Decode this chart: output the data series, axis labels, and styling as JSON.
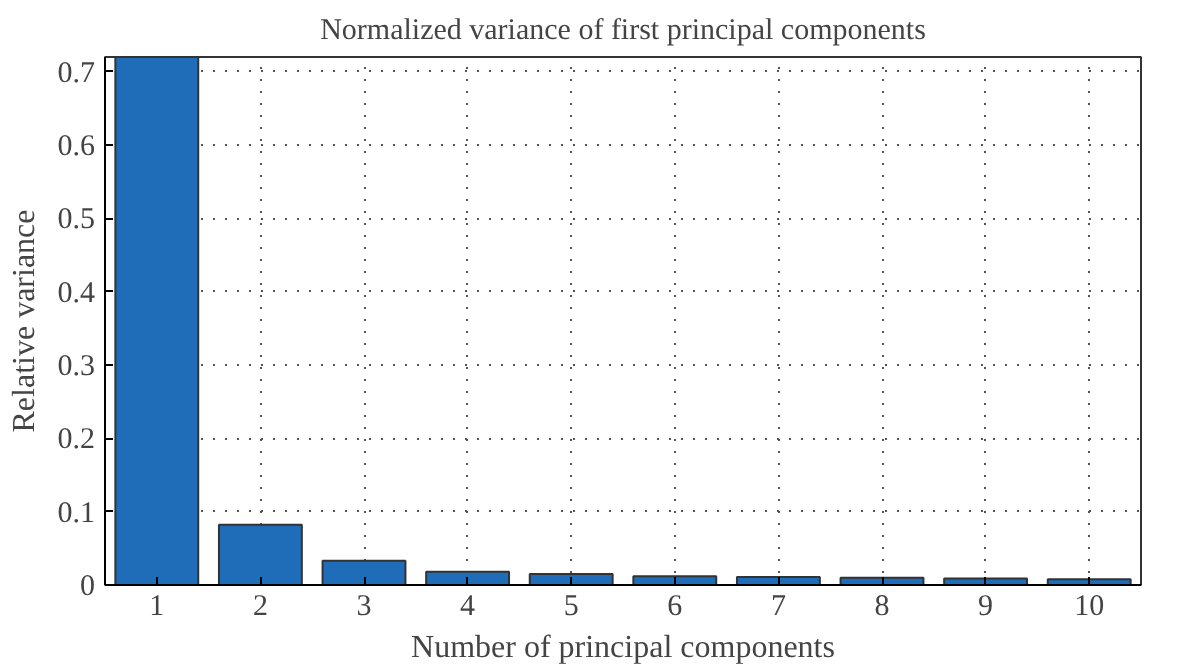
{
  "chart_data": {
    "type": "bar",
    "title": "Normalized variance of first principal components",
    "xlabel": "Number of principal components",
    "ylabel": "Relative variance",
    "x": [
      1,
      2,
      3,
      4,
      5,
      6,
      7,
      8,
      9,
      10
    ],
    "values": [
      0.72,
      0.082,
      0.033,
      0.018,
      0.015,
      0.012,
      0.011,
      0.01,
      0.009,
      0.008
    ],
    "color": "#1f6db8",
    "xlim": [
      0.5,
      10.5
    ],
    "xticks": [
      1,
      2,
      3,
      4,
      5,
      6,
      7,
      8,
      9,
      10
    ],
    "ylim": [
      0,
      0.72
    ],
    "yticks": [
      0,
      0.1,
      0.2,
      0.3,
      0.4,
      0.5,
      0.6,
      0.7
    ],
    "grid": true
  }
}
